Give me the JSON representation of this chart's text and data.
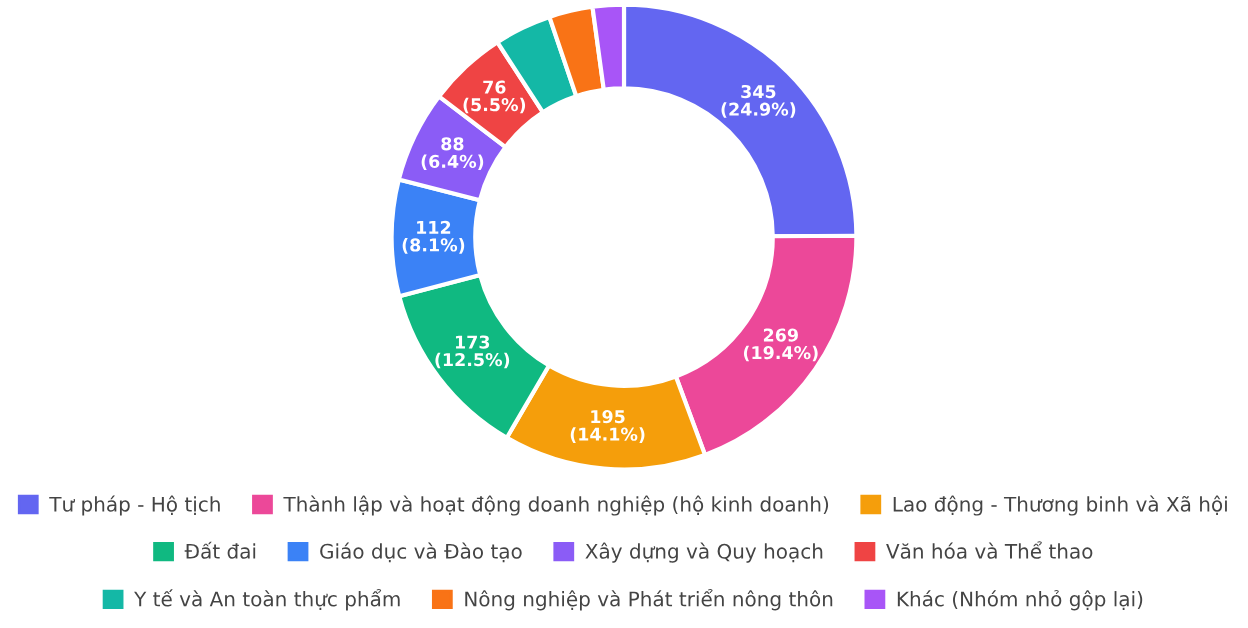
{
  "chart_data": {
    "type": "donut",
    "categories": [
      "Tư pháp - Hộ tịch",
      "Thành lập và hoạt động doanh nghiệp (hộ kinh doanh)",
      "Lao động - Thương binh và Xã hội",
      "Đất đai",
      "Giáo dục và Đào tạo",
      "Xây dựng và Quy hoạch",
      "Văn hóa và Thể thao",
      "Y tế và An toàn thực phẩm",
      "Nông nghiệp và Phát triển nông thôn",
      "Khác (Nhóm nhỏ gộp lại)"
    ],
    "values": [
      345,
      269,
      195,
      173,
      112,
      88,
      76,
      55,
      42,
      30
    ],
    "value_labels": [
      "345\n(24.9%)",
      "269\n(19.4%)",
      "195\n(14.1%)",
      "173\n(12.5%)",
      "112\n(8.1%)",
      "88\n(6.4%)",
      "76\n(5.5%)",
      null,
      null,
      null
    ],
    "colors": [
      "#6366f1",
      "#ec4899",
      "#f59e0b",
      "#10b981",
      "#3b82f6",
      "#8b5cf6",
      "#ef4444",
      "#14b8a6",
      "#f97316",
      "#a855f7"
    ],
    "legend": "bottom"
  }
}
